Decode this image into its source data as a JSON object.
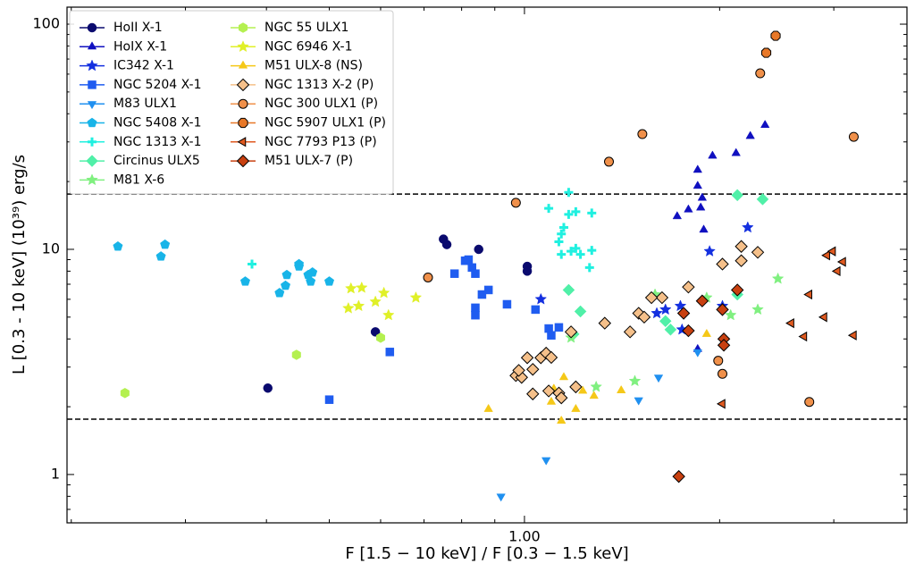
{
  "chart_data": {
    "type": "scatter",
    "xlabel": "F [1.5 − 10 keV] / F [0.3 − 1.5 keV]",
    "ylabel": "L [0.3 - 10 keV] (10³⁹) erg/s",
    "xscale": "log",
    "yscale": "log",
    "xlim": [
      0.197,
      3.89
    ],
    "ylim": [
      0.61,
      119
    ],
    "xticks": [
      {
        "value": 1,
        "label": "1.00"
      }
    ],
    "xminorticks": [
      0.2,
      0.3,
      0.4,
      0.5,
      0.6,
      0.7,
      0.8,
      0.9,
      2,
      3
    ],
    "yticks": [
      1,
      10,
      100
    ],
    "yminorticks": [
      0.7,
      0.8,
      0.9,
      2,
      3,
      4,
      5,
      6,
      7,
      8,
      9,
      20,
      30,
      40,
      50,
      60,
      70,
      80,
      90
    ],
    "reference_lines": [
      17.6,
      1.76
    ],
    "legend": "upper left",
    "series": [
      {
        "name": "HoII X-1",
        "color": "#0a0a6e",
        "marker": "circle",
        "x": [
          0.402,
          0.589,
          0.75,
          0.759,
          0.85,
          1.01,
          1.01
        ],
        "y": [
          2.42,
          4.3,
          11.1,
          10.5,
          10.0,
          8.4,
          8.0
        ]
      },
      {
        "name": "HoIX X-1",
        "color": "#1010c0",
        "marker": "triangle-up",
        "x": [
          1.85,
          1.85,
          1.88,
          1.87,
          1.72,
          1.79,
          1.89,
          1.95,
          2.12,
          2.23,
          2.35,
          1.85
        ],
        "y": [
          19.1,
          22.5,
          16.9,
          15.3,
          14.0,
          15.0,
          12.2,
          26,
          26.7,
          31.8,
          35.6,
          3.6
        ]
      },
      {
        "name": "IC342 X-1",
        "color": "#1430e0",
        "marker": "star",
        "x": [
          1.06,
          1.6,
          1.65,
          1.74,
          1.93,
          2.02,
          2.21,
          1.75
        ],
        "y": [
          6.0,
          5.2,
          5.4,
          5.6,
          9.8,
          5.6,
          12.5,
          4.4
        ]
      },
      {
        "name": "NGC 5204 X-1",
        "color": "#1f5cf0",
        "marker": "square",
        "x": [
          0.82,
          0.78,
          0.83,
          0.84,
          0.88,
          0.86,
          0.84,
          0.84,
          0.94,
          1.04,
          1.09,
          1.13,
          1.1,
          0.62,
          0.5,
          0.81
        ],
        "y": [
          9.0,
          7.8,
          8.3,
          7.8,
          6.6,
          6.3,
          5.5,
          5.1,
          5.7,
          5.4,
          4.45,
          4.5,
          4.15,
          3.5,
          2.15,
          8.9
        ]
      },
      {
        "name": "M83 ULX1",
        "color": "#2090f0",
        "marker": "triangle-down",
        "x": [
          0.92,
          1.08,
          1.5,
          1.61,
          1.85
        ],
        "y": [
          0.8,
          1.16,
          2.14,
          2.7,
          3.5
        ]
      },
      {
        "name": "NGC 5408 X-1",
        "color": "#18b4e8",
        "marker": "pentagon",
        "x": [
          0.236,
          0.279,
          0.275,
          0.371,
          0.419,
          0.428,
          0.43,
          0.449,
          0.449,
          0.464,
          0.468,
          0.471,
          0.5
        ],
        "y": [
          10.3,
          10.5,
          9.3,
          7.2,
          6.4,
          6.9,
          7.7,
          8.4,
          8.6,
          7.7,
          7.2,
          7.9,
          7.2
        ]
      },
      {
        "name": "NGC 1313 X-1",
        "color": "#20f0e0",
        "marker": "plus",
        "x": [
          0.38,
          1.09,
          1.17,
          1.17,
          1.2,
          1.27,
          1.14,
          1.15,
          1.13,
          1.18,
          1.2,
          1.22,
          1.26,
          1.27,
          1.14
        ],
        "y": [
          8.6,
          15.2,
          17.9,
          14.3,
          14.7,
          14.5,
          11.7,
          12.5,
          10.8,
          9.8,
          10.1,
          9.5,
          8.3,
          9.9,
          9.5
        ]
      },
      {
        "name": "Circinus ULX5",
        "color": "#50f0a8",
        "marker": "diamond",
        "x": [
          1.17,
          1.22,
          1.19,
          1.65,
          1.68,
          2.13,
          2.33,
          2.13
        ],
        "y": [
          6.6,
          5.3,
          4.2,
          4.8,
          4.4,
          17.4,
          16.7,
          6.3
        ]
      },
      {
        "name": "M81 X-6",
        "color": "#80f080",
        "marker": "star",
        "x": [
          1.59,
          1.48,
          1.29,
          1.91,
          2.08,
          2.29,
          2.46,
          1.18
        ],
        "y": [
          6.3,
          2.6,
          2.45,
          6.1,
          5.1,
          5.4,
          7.4,
          4.05
        ]
      },
      {
        "name": "NGC 55 ULX1",
        "color": "#b4f050",
        "marker": "hexagon",
        "x": [
          0.242,
          0.445,
          0.6
        ],
        "y": [
          2.3,
          3.4,
          4.05
        ]
      },
      {
        "name": "NGC 6946 X-1",
        "color": "#e0f028",
        "marker": "star",
        "x": [
          0.535,
          0.555,
          0.561,
          0.54,
          0.589,
          0.617,
          0.68,
          0.607
        ],
        "y": [
          5.47,
          5.6,
          6.75,
          6.7,
          5.85,
          5.1,
          6.1,
          6.4
        ]
      },
      {
        "name": "M51 ULX-8 (NS)",
        "color": "#f5c818",
        "marker": "triangle-up",
        "x": [
          0.88,
          1.14,
          1.1,
          1.15,
          1.2,
          1.23,
          1.28,
          1.41,
          1.91,
          1.11
        ],
        "y": [
          1.95,
          1.73,
          2.1,
          2.7,
          1.95,
          2.35,
          2.23,
          2.36,
          4.2,
          2.4
        ]
      },
      {
        "name": "NGC 1313 X-2 (P)",
        "color": "#f5c08a",
        "marker": "diamond",
        "edge": "#000000",
        "x": [
          0.97,
          0.99,
          0.98,
          1.03,
          1.01,
          1.06,
          1.08,
          1.1,
          1.09,
          1.13,
          1.14,
          1.2,
          1.18,
          1.33,
          1.455,
          1.5,
          1.53,
          1.63,
          1.79,
          2.02,
          2.16,
          2.16,
          2.29,
          1.03,
          1.57
        ],
        "y": [
          2.75,
          2.7,
          2.9,
          2.93,
          3.3,
          3.3,
          3.46,
          3.31,
          2.35,
          2.3,
          2.19,
          2.45,
          4.3,
          4.7,
          4.3,
          5.2,
          5.0,
          6.1,
          6.8,
          8.6,
          10.3,
          8.9,
          9.7,
          2.28,
          6.1
        ]
      },
      {
        "name": "NGC 300 ULX1 (P)",
        "color": "#f0904a",
        "marker": "circle",
        "edge": "#000000",
        "x": [
          1.99,
          2.02,
          2.75,
          0.97,
          0.71,
          1.52,
          1.35,
          2.31,
          3.22
        ],
        "y": [
          3.2,
          2.8,
          2.1,
          16.1,
          7.5,
          32.5,
          24.5,
          60.5,
          31.6
        ]
      },
      {
        "name": "NGC 5907 ULX1 (P)",
        "color": "#e87828",
        "marker": "octagon",
        "edge": "#000000",
        "x": [
          2.44,
          2.36
        ],
        "y": [
          88.8,
          74.6
        ]
      },
      {
        "name": "NGC 7793 P13 (P)",
        "color": "#e05a20",
        "marker": "triangle-left",
        "edge": "#000000",
        "x": [
          2.02,
          2.75,
          2.58,
          2.9,
          2.7,
          2.93,
          2.99,
          3.04,
          3.1,
          3.22
        ],
        "y": [
          2.06,
          6.3,
          4.7,
          5.0,
          4.1,
          9.4,
          9.8,
          8.0,
          8.8,
          4.15
        ]
      },
      {
        "name": "M51 ULX-7 (P)",
        "color": "#c84010",
        "marker": "diamond",
        "edge": "#000000",
        "x": [
          1.73,
          1.76,
          1.79,
          1.88,
          2.02,
          2.03,
          2.03,
          2.13
        ],
        "y": [
          0.98,
          5.2,
          4.35,
          5.9,
          5.4,
          4.0,
          3.75,
          6.6
        ]
      }
    ]
  }
}
